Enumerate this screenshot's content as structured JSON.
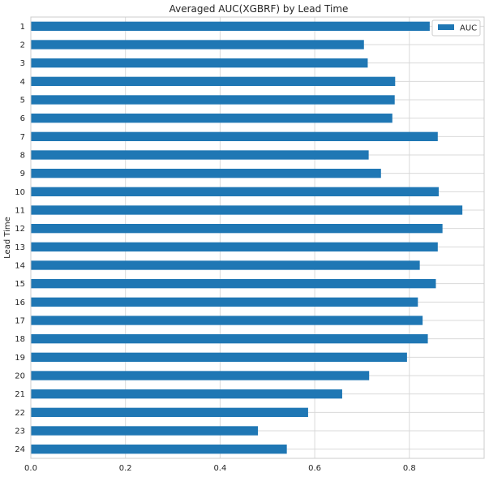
{
  "chart_data": {
    "type": "bar",
    "orientation": "horizontal",
    "title": "Averaged AUC(XGBRF) by Lead Time",
    "xlabel": "",
    "ylabel": "Lead Time",
    "categories": [
      "1",
      "2",
      "3",
      "4",
      "5",
      "6",
      "7",
      "8",
      "9",
      "10",
      "11",
      "12",
      "13",
      "14",
      "15",
      "16",
      "17",
      "18",
      "19",
      "20",
      "21",
      "22",
      "23",
      "24"
    ],
    "series": [
      {
        "name": "AUC",
        "color": "#1f77b4",
        "values": [
          0.843,
          0.704,
          0.712,
          0.77,
          0.769,
          0.764,
          0.86,
          0.714,
          0.74,
          0.862,
          0.912,
          0.87,
          0.86,
          0.822,
          0.856,
          0.818,
          0.828,
          0.839,
          0.795,
          0.715,
          0.658,
          0.586,
          0.48,
          0.541
        ]
      }
    ],
    "xlim": [
      0,
      0.958
    ],
    "xticks": [
      "0.0",
      "0.2",
      "0.4",
      "0.6",
      "0.8"
    ],
    "xtick_values": [
      0,
      0.2,
      0.4,
      0.6,
      0.8
    ],
    "grid": true,
    "legend": {
      "position": "top-right",
      "entries": [
        "AUC"
      ]
    }
  }
}
